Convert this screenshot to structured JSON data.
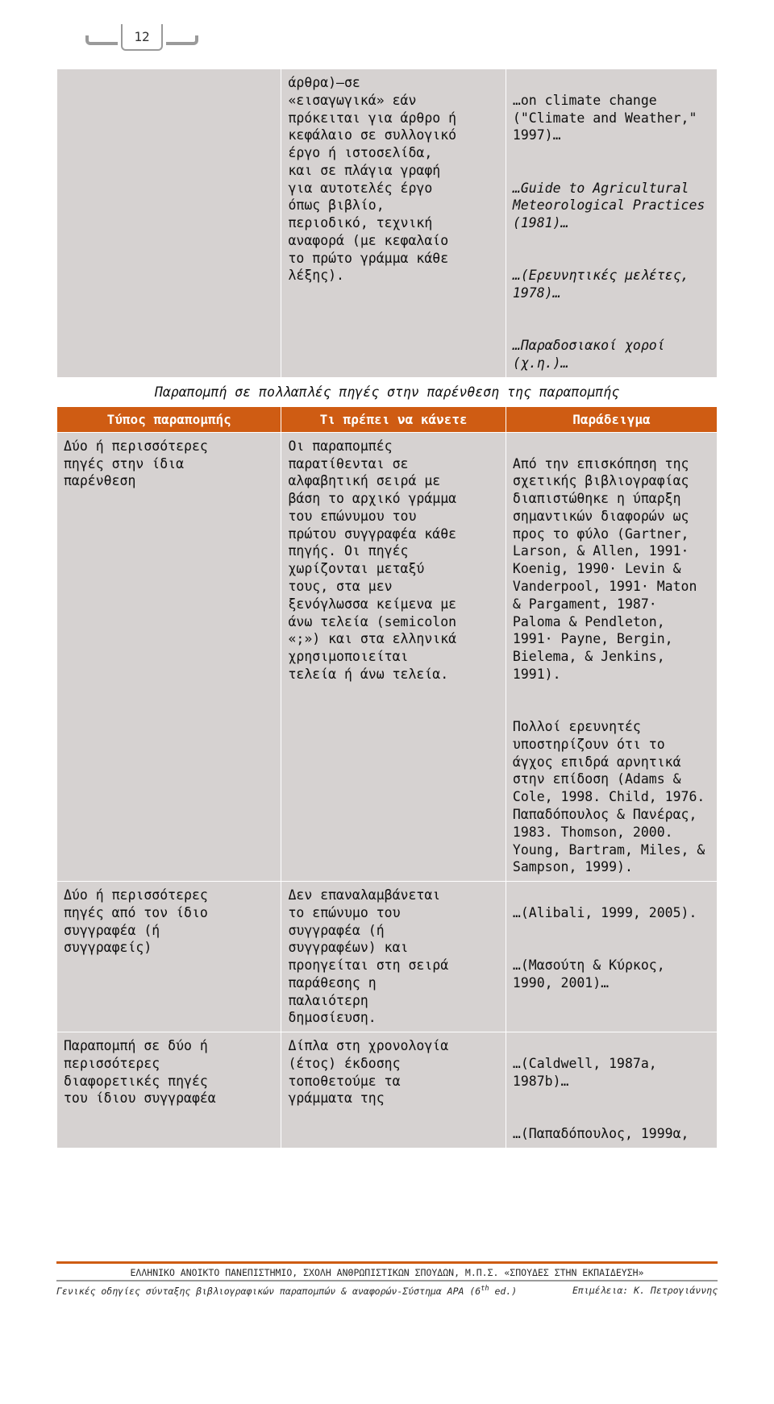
{
  "page_number": "12",
  "topcell_left": "άρθρα)—σε\n«εισαγωγικά» εάν\nπρόκειται για άρθρο ή\nκεφάλαιο σε συλλογικό\nέργο ή ιστοσελίδα,\nκαι σε πλάγια γραφή\nγια αυτοτελές έργο\nόπως βιβλίο,\nπεριοδικό, τεχνική\nαναφορά (με κεφαλαίο\nτο πρώτο γράμμα κάθε\nλέξης).",
  "topcell_right_1": "…on climate change\n(\"Climate and Weather,\"\n1997)…",
  "topcell_right_2": "…Guide to Agricultural\nMeteorological Practices\n(1981)…",
  "topcell_right_3": "…(Ερευνητικές μελέτες,\n1978)…",
  "topcell_right_4": "…Παραδοσιακοί χοροί\n(χ.η.)…",
  "section_title": "Παραπομπή σε πολλαπλές πηγές στην παρένθεση της παραπομπής",
  "hdr1": "Τύπος παραπομπής",
  "hdr2": "Τι πρέπει να κάνετε",
  "hdr3": "Παράδειγμα",
  "r1c1": "Δύο ή περισσότερες\nπηγές στην ίδια\nπαρένθεση",
  "r1c2": "Οι παραπομπές\nπαρατίθενται σε\nαλφαβητική σειρά με\nβάση το αρχικό γράμμα\nτου επώνυμου του\nπρώτου συγγραφέα κάθε\nπηγής. Οι πηγές\nχωρίζονται μεταξύ\nτους, στα μεν\nξενόγλωσσα κείμενα με\nάνω τελεία (semicolon\n«;») και στα ελληνικά\nχρησιμοποιείται\nτελεία ή άνω τελεία.",
  "r1c3_p1": "Από την επισκόπηση της\nσχετικής βιβλιογραφίας\nδιαπιστώθηκε η ύπαρξη\nσημαντικών διαφορών ως\nπρος το φύλο (Gartner,\nLarson, & Allen, 1991·\nKoenig, 1990· Levin &\nVanderpool, 1991· Maton\n& Pargament, 1987·\nPaloma & Pendleton,\n1991· Payne, Bergin,\nBielema, & Jenkins,\n1991).",
  "r1c3_p2": "Πολλοί ερευνητές\nυποστηρίζουν ότι το\nάγχος επιδρά αρνητικά\nστην επίδοση (Adams &\nCole, 1998. Child, 1976.\nΠαπαδόπουλος & Πανέρας,\n1983. Thomson, 2000.\nYoung, Bartram, Miles, &\nSampson, 1999).",
  "r2c1": "Δύο ή περισσότερες\nπηγές από τον ίδιο\nσυγγραφέα (ή\nσυγγραφείς)",
  "r2c2": "Δεν επαναλαμβάνεται\nτο επώνυμο του\nσυγγραφέα (ή\nσυγγραφέων) και\nπροηγείται στη σειρά\nπαράθεσης η\nπαλαιότερη\nδημοσίευση.",
  "r2c3_p1": "…(Alibali, 1999, 2005).",
  "r2c3_p2": "…(Μασούτη & Κύρκος,\n1990, 2001)…",
  "r3c1": "Παραπομπή σε δύο ή\nπερισσότερες\nδιαφορετικές πηγές\nτου ίδιου συγγραφέα",
  "r3c2": "Δίπλα στη χρονολογία\n(έτος) έκδοσης\nτοποθετούμε τα\nγράμματα της",
  "r3c3_p1": "…(Caldwell, 1987a,\n1987b)…",
  "r3c3_p2": "…(Παπαδόπουλος, 1999α,",
  "footer_line1": "ΕΛΛΗΝΙΚΟ ΑΝΟΙΚΤΟ ΠΑΝΕΠΙΣΤΗΜΙΟ, ΣΧΟΛΗ ΑΝΘΡΩΠΙΣΤΙΚΩΝ ΣΠΟΥΔΩΝ, Μ.Π.Σ. «ΣΠΟΥΔΕΣ ΣΤΗΝ ΕΚΠΑΙΔΕΥΣΗ»",
  "footer_left": "Γενικές οδηγίες σύνταξης βιβλιογραφικών παραπομπών & αναφορών-Σύστημα APA (6",
  "footer_left_sup": "th",
  "footer_left_end": " ed.)",
  "footer_right": "Επιμέλεια: Κ. Πετρογιάννης"
}
